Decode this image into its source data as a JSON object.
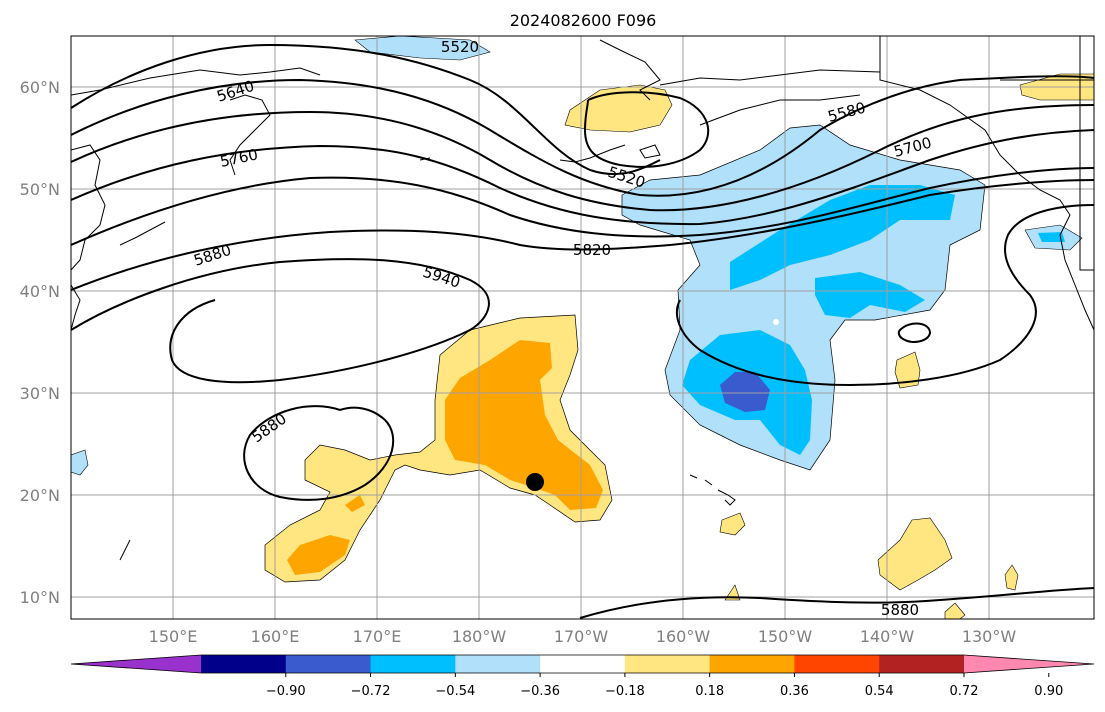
{
  "title": "2024082600 F096",
  "lat_labels": [
    "60°N",
    "50°N",
    "40°N",
    "30°N",
    "20°N",
    "10°N"
  ],
  "lon_labels": [
    "150°E",
    "160°E",
    "170°E",
    "180°W",
    "170°W",
    "160°W",
    "150°W",
    "140°W",
    "130°W"
  ],
  "contour_labels": [
    "5520",
    "5640",
    "5760",
    "5880",
    "5940",
    "5880",
    "5820",
    "5520",
    "5580",
    "5700",
    "5880"
  ],
  "colorbar": {
    "tick_labels": [
      "−0.90",
      "−0.72",
      "−0.54",
      "−0.36",
      "−0.18",
      "0.18",
      "0.36",
      "0.54",
      "0.72",
      "0.90"
    ],
    "colors": [
      "#9932cc",
      "#00008b",
      "#3a5bcd",
      "#00bfff",
      "#b0e0fa",
      "#ffffff",
      "#ffe680",
      "#ffa500",
      "#ff4500",
      "#b22222",
      "#ff88b0"
    ]
  },
  "fill_colors": {
    "light_yellow": "#ffe680",
    "orange": "#ffa500",
    "light_blue": "#b0e0fa",
    "blue": "#00bfff",
    "medium_blue": "#3a5bcd"
  }
}
